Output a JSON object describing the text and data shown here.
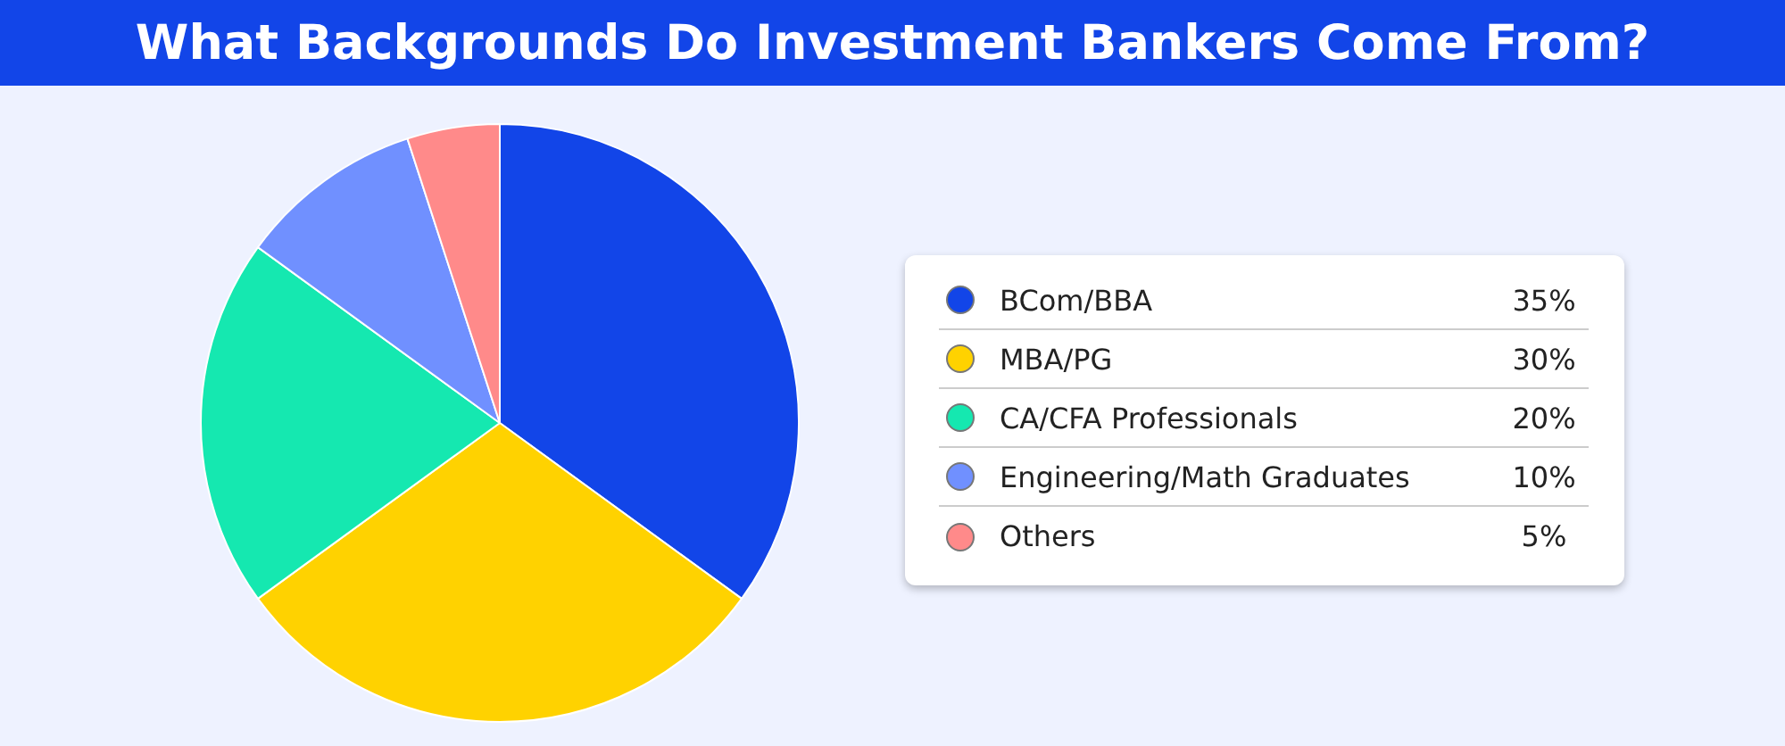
{
  "chart_data": {
    "type": "pie",
    "title": "What Backgrounds Do Investment Bankers Come From?",
    "categories": [
      "BCom/BBA",
      "MBA/PG",
      "CA/CFA Professionals",
      "Engineering/Math Graduates",
      "Others"
    ],
    "values": [
      35,
      30,
      20,
      10,
      5
    ],
    "colors": [
      "#1245e8",
      "#ffd200",
      "#15e8b0",
      "#7090ff",
      "#ff8a8a"
    ],
    "value_labels": [
      "35%",
      "30%",
      "20%",
      "10%",
      "5%"
    ],
    "legend": "right"
  }
}
